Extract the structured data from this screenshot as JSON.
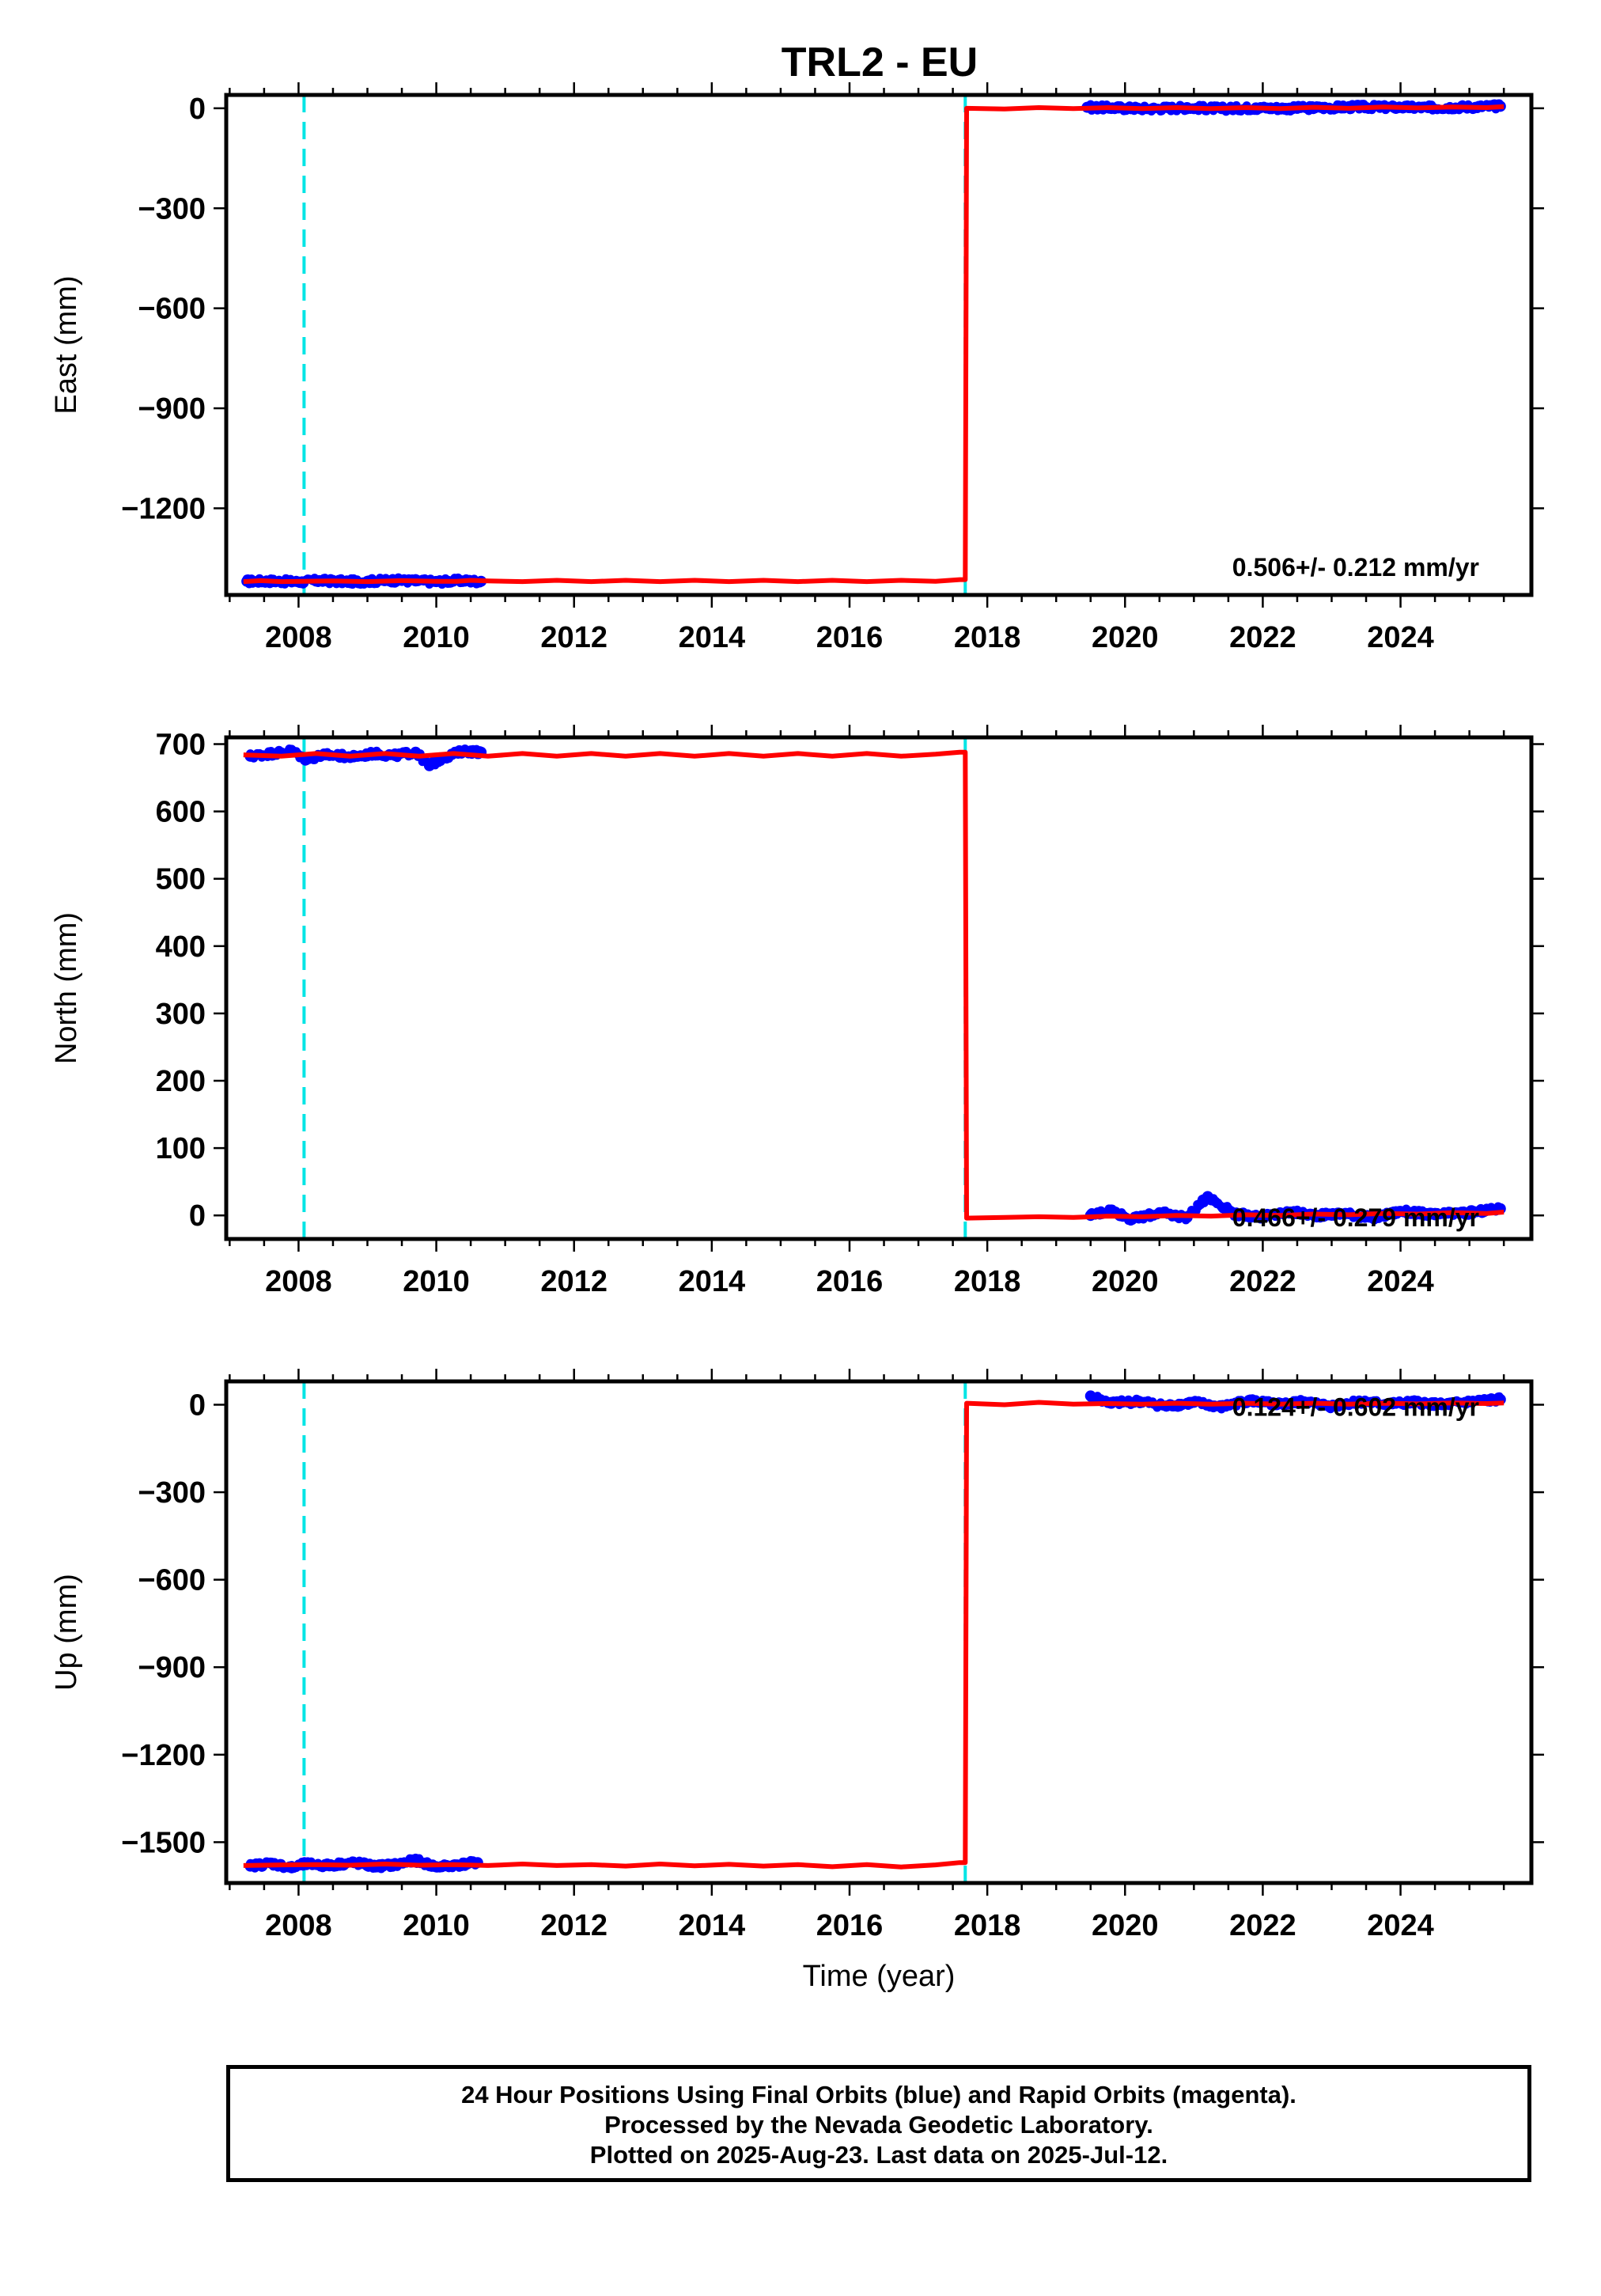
{
  "title": "TRL2 - EU",
  "footer": {
    "line1": "24 Hour Positions Using Final Orbits (blue) and Rapid Orbits (magenta).",
    "line2": "Processed by the Nevada Geodetic Laboratory.",
    "line3": "Plotted on 2025-Aug-23. Last data on 2025-Jul-12."
  },
  "colors": {
    "final_orbits": "#0000ff",
    "model": "#ff0000",
    "event_line": "#00e5e5"
  },
  "chart_data": [
    {
      "type": "scatter",
      "ylabel": "East (mm)",
      "xlabel": "",
      "xlim": [
        2006.95,
        2025.9
      ],
      "ylim": [
        -1460,
        40
      ],
      "xticks": [
        2008,
        2010,
        2012,
        2014,
        2016,
        2018,
        2020,
        2022,
        2024
      ],
      "yticks": [
        0,
        -300,
        -600,
        -900,
        -1200
      ],
      "vlines": [
        2008.08,
        2017.68
      ],
      "rate_label": "0.506+/- 0.212 mm/yr",
      "series": [
        {
          "values": [
            [
              2007.25,
              -1419
            ],
            [
              2007.6,
              -1418
            ],
            [
              2008.0,
              -1421
            ],
            [
              2008.3,
              -1417
            ],
            [
              2008.7,
              -1420
            ],
            [
              2009.0,
              -1419
            ],
            [
              2009.35,
              -1416
            ],
            [
              2009.7,
              -1418
            ],
            [
              2010.0,
              -1420
            ],
            [
              2010.35,
              -1417
            ],
            [
              2010.65,
              -1419
            ],
            [
              2019.45,
              3
            ],
            [
              2019.9,
              1
            ],
            [
              2020.4,
              -1
            ],
            [
              2020.9,
              2
            ],
            [
              2021.4,
              -1
            ],
            [
              2021.9,
              1
            ],
            [
              2022.4,
              0
            ],
            [
              2022.9,
              2
            ],
            [
              2023.4,
              4
            ],
            [
              2023.9,
              3
            ],
            [
              2024.4,
              2
            ],
            [
              2024.9,
              4
            ],
            [
              2025.45,
              6
            ]
          ]
        },
        {
          "values": [
            [
              2007.2,
              -1420
            ],
            [
              2007.45,
              -1417
            ],
            [
              2007.75,
              -1420
            ],
            [
              2008.05,
              -1419
            ],
            [
              2008.5,
              -1418
            ],
            [
              2009.0,
              -1420
            ],
            [
              2009.5,
              -1417
            ],
            [
              2010.0,
              -1419
            ],
            [
              2010.3,
              -1419
            ],
            [
              2010.5,
              -1416
            ],
            [
              2010.75,
              -1418
            ],
            [
              2011.25,
              -1420
            ],
            [
              2011.75,
              -1416
            ],
            [
              2012.25,
              -1420
            ],
            [
              2012.75,
              -1416
            ],
            [
              2013.25,
              -1420
            ],
            [
              2013.75,
              -1416
            ],
            [
              2014.25,
              -1420
            ],
            [
              2014.75,
              -1416
            ],
            [
              2015.25,
              -1420
            ],
            [
              2015.75,
              -1416
            ],
            [
              2016.25,
              -1420
            ],
            [
              2016.75,
              -1416
            ],
            [
              2017.25,
              -1419
            ],
            [
              2017.6,
              -1414
            ],
            [
              2017.68,
              -1414
            ],
            [
              2017.7,
              0
            ],
            [
              2018.25,
              -2
            ],
            [
              2018.75,
              2
            ],
            [
              2019.25,
              -1
            ],
            [
              2019.75,
              2
            ],
            [
              2020.25,
              -1
            ],
            [
              2020.75,
              2
            ],
            [
              2021.25,
              -1
            ],
            [
              2021.75,
              2
            ],
            [
              2022.25,
              -1
            ],
            [
              2022.75,
              3
            ],
            [
              2023.25,
              0
            ],
            [
              2023.75,
              4
            ],
            [
              2024.25,
              1
            ],
            [
              2024.75,
              4
            ],
            [
              2025.25,
              2
            ],
            [
              2025.5,
              5
            ]
          ]
        }
      ]
    },
    {
      "type": "scatter",
      "ylabel": "North (mm)",
      "xlabel": "",
      "xlim": [
        2006.95,
        2025.9
      ],
      "ylim": [
        -35,
        710
      ],
      "xticks": [
        2008,
        2010,
        2012,
        2014,
        2016,
        2018,
        2020,
        2022,
        2024
      ],
      "yticks": [
        700,
        600,
        500,
        400,
        300,
        200,
        100,
        0
      ],
      "vlines": [
        2008.08,
        2017.68
      ],
      "rate_label": "0.466+/- 0.279 mm/yr",
      "series": [
        {
          "values": [
            [
              2007.3,
              682
            ],
            [
              2007.6,
              686
            ],
            [
              2007.9,
              690
            ],
            [
              2008.1,
              678
            ],
            [
              2008.4,
              684
            ],
            [
              2008.8,
              681
            ],
            [
              2009.1,
              686
            ],
            [
              2009.4,
              683
            ],
            [
              2009.7,
              688
            ],
            [
              2009.9,
              668
            ],
            [
              2010.1,
              680
            ],
            [
              2010.4,
              690
            ],
            [
              2010.65,
              688
            ],
            [
              2019.5,
              0
            ],
            [
              2019.8,
              8
            ],
            [
              2020.1,
              -6
            ],
            [
              2020.5,
              4
            ],
            [
              2020.9,
              -3
            ],
            [
              2021.2,
              28
            ],
            [
              2021.6,
              2
            ],
            [
              2022.0,
              -2
            ],
            [
              2022.4,
              5
            ],
            [
              2022.8,
              0
            ],
            [
              2023.2,
              3
            ],
            [
              2023.6,
              -4
            ],
            [
              2024.0,
              6
            ],
            [
              2024.5,
              1
            ],
            [
              2025.0,
              4
            ],
            [
              2025.45,
              10
            ]
          ]
        },
        {
          "values": [
            [
              2007.2,
              684
            ],
            [
              2007.75,
              682
            ],
            [
              2008.25,
              686
            ],
            [
              2008.75,
              682
            ],
            [
              2009.25,
              686
            ],
            [
              2009.75,
              682
            ],
            [
              2010.25,
              686
            ],
            [
              2010.75,
              682
            ],
            [
              2011.25,
              686
            ],
            [
              2011.75,
              682
            ],
            [
              2012.25,
              686
            ],
            [
              2012.75,
              682
            ],
            [
              2013.25,
              686
            ],
            [
              2013.75,
              682
            ],
            [
              2014.25,
              686
            ],
            [
              2014.75,
              682
            ],
            [
              2015.25,
              686
            ],
            [
              2015.75,
              682
            ],
            [
              2016.25,
              686
            ],
            [
              2016.75,
              682
            ],
            [
              2017.25,
              685
            ],
            [
              2017.6,
              688
            ],
            [
              2017.68,
              688
            ],
            [
              2017.7,
              -4
            ],
            [
              2018.25,
              -3
            ],
            [
              2018.75,
              -2
            ],
            [
              2019.25,
              -3
            ],
            [
              2019.75,
              -1
            ],
            [
              2020.25,
              -2
            ],
            [
              2020.75,
              0
            ],
            [
              2021.25,
              -1
            ],
            [
              2021.75,
              1
            ],
            [
              2022.25,
              0
            ],
            [
              2022.75,
              2
            ],
            [
              2023.25,
              1
            ],
            [
              2023.75,
              3
            ],
            [
              2024.25,
              2
            ],
            [
              2024.75,
              4
            ],
            [
              2025.25,
              3
            ],
            [
              2025.5,
              5
            ]
          ]
        }
      ]
    },
    {
      "type": "scatter",
      "ylabel": "Up (mm)",
      "xlabel": "Time (year)",
      "xlim": [
        2006.95,
        2025.9
      ],
      "ylim": [
        -1640,
        80
      ],
      "xticks": [
        2008,
        2010,
        2012,
        2014,
        2016,
        2018,
        2020,
        2022,
        2024
      ],
      "yticks": [
        0,
        -300,
        -600,
        -900,
        -1200,
        -1500
      ],
      "vlines": [
        2008.08,
        2017.68
      ],
      "rate_label": "0.124+/- 0.602 mm/yr",
      "series": [
        {
          "values": [
            [
              2007.3,
              -1582
            ],
            [
              2007.6,
              -1572
            ],
            [
              2007.9,
              -1588
            ],
            [
              2008.1,
              -1575
            ],
            [
              2008.4,
              -1580
            ],
            [
              2008.8,
              -1570
            ],
            [
              2009.1,
              -1583
            ],
            [
              2009.4,
              -1578
            ],
            [
              2009.7,
              -1562
            ],
            [
              2010.0,
              -1585
            ],
            [
              2010.3,
              -1578
            ],
            [
              2010.6,
              -1570
            ],
            [
              2019.5,
              30
            ],
            [
              2019.8,
              5
            ],
            [
              2020.2,
              12
            ],
            [
              2020.6,
              -5
            ],
            [
              2021.0,
              8
            ],
            [
              2021.4,
              -8
            ],
            [
              2021.8,
              15
            ],
            [
              2022.2,
              0
            ],
            [
              2022.6,
              10
            ],
            [
              2023.0,
              -5
            ],
            [
              2023.4,
              12
            ],
            [
              2023.8,
              2
            ],
            [
              2024.2,
              8
            ],
            [
              2024.6,
              0
            ],
            [
              2025.0,
              10
            ],
            [
              2025.45,
              18
            ]
          ]
        },
        {
          "values": [
            [
              2007.2,
              -1580
            ],
            [
              2007.75,
              -1578
            ],
            [
              2008.25,
              -1577
            ],
            [
              2008.75,
              -1579
            ],
            [
              2009.25,
              -1575
            ],
            [
              2009.75,
              -1579
            ],
            [
              2010.25,
              -1577
            ],
            [
              2010.75,
              -1580
            ],
            [
              2011.25,
              -1575
            ],
            [
              2011.75,
              -1580
            ],
            [
              2012.25,
              -1577
            ],
            [
              2012.75,
              -1582
            ],
            [
              2013.25,
              -1575
            ],
            [
              2013.75,
              -1581
            ],
            [
              2014.25,
              -1576
            ],
            [
              2014.75,
              -1582
            ],
            [
              2015.25,
              -1577
            ],
            [
              2015.75,
              -1584
            ],
            [
              2016.25,
              -1577
            ],
            [
              2016.75,
              -1585
            ],
            [
              2017.25,
              -1578
            ],
            [
              2017.6,
              -1570
            ],
            [
              2017.68,
              -1570
            ],
            [
              2017.7,
              5
            ],
            [
              2018.25,
              0
            ],
            [
              2018.75,
              8
            ],
            [
              2019.25,
              2
            ],
            [
              2019.75,
              4
            ],
            [
              2020.25,
              2
            ],
            [
              2020.75,
              5
            ],
            [
              2021.25,
              2
            ],
            [
              2021.75,
              5
            ],
            [
              2022.25,
              2
            ],
            [
              2022.75,
              5
            ],
            [
              2023.25,
              2
            ],
            [
              2023.75,
              5
            ],
            [
              2024.25,
              3
            ],
            [
              2024.75,
              6
            ],
            [
              2025.25,
              4
            ],
            [
              2025.5,
              6
            ]
          ]
        }
      ]
    }
  ]
}
